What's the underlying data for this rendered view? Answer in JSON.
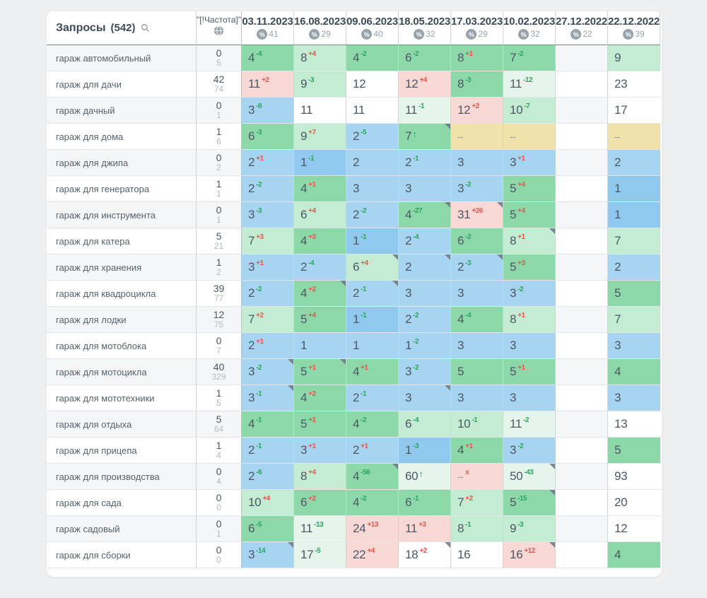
{
  "header": {
    "queries_label": "Запросы",
    "queries_count": "(542)",
    "frequency_label": "\"[!Частота]\"",
    "icons": {
      "search": "magnifier",
      "frequency": "globe",
      "percent": "percent-circle"
    },
    "columns": [
      {
        "date": "03.11.2023",
        "percent": "41"
      },
      {
        "date": "16.08.2023",
        "percent": "29"
      },
      {
        "date": "09.06.2023",
        "percent": "40"
      },
      {
        "date": "18.05.2023",
        "percent": "32"
      },
      {
        "date": "17.03.2023",
        "percent": "29"
      },
      {
        "date": "10.02.2023",
        "percent": "32"
      },
      {
        "date": "27.12.2022",
        "percent": "22"
      },
      {
        "date": "22.12.2022",
        "percent": "39"
      }
    ]
  },
  "colors": {
    "delta_good": "#2ba55e",
    "delta_bad": "#e4574e",
    "cell_bg": {
      "g": "#8dd8a8",
      "lg": "#c3ecd3",
      "pg": "#e6f6ec",
      "b": "#a7d4f0",
      "db": "#90c8ee",
      "p": "#f8d9d6",
      "y": "#f1e1ab",
      "w": "#ffffff",
      "e": ""
    }
  },
  "rows": [
    {
      "keyword": "гараж автомобильный",
      "freq_top": "0",
      "freq_bottom": "5",
      "cells": [
        {
          "v": "4",
          "d": "-4",
          "bg": "g"
        },
        {
          "v": "8",
          "d": "+4",
          "bg": "lg"
        },
        {
          "v": "4",
          "d": "-2",
          "bg": "g"
        },
        {
          "v": "6",
          "d": "-2",
          "bg": "g"
        },
        {
          "v": "8",
          "d": "+1",
          "bg": "g"
        },
        {
          "v": "7",
          "d": "-2",
          "bg": "g"
        },
        {
          "v": "",
          "d": "",
          "bg": "e"
        },
        {
          "v": "9",
          "d": "",
          "bg": "lg"
        }
      ]
    },
    {
      "keyword": "гараж для дачи",
      "freq_top": "42",
      "freq_bottom": "74",
      "cells": [
        {
          "v": "11",
          "d": "+2",
          "bg": "p"
        },
        {
          "v": "9",
          "d": "-3",
          "bg": "lg"
        },
        {
          "v": "12",
          "d": "",
          "bg": "w"
        },
        {
          "v": "12",
          "d": "+4",
          "bg": "p"
        },
        {
          "v": "8",
          "d": "-3",
          "bg": "g"
        },
        {
          "v": "11",
          "d": "-12",
          "bg": "pg"
        },
        {
          "v": "",
          "d": "",
          "bg": "e"
        },
        {
          "v": "23",
          "d": "",
          "bg": "w"
        }
      ]
    },
    {
      "keyword": "гараж дачный",
      "freq_top": "0",
      "freq_bottom": "1",
      "cells": [
        {
          "v": "3",
          "d": "-8",
          "bg": "b"
        },
        {
          "v": "11",
          "d": "",
          "bg": "w"
        },
        {
          "v": "11",
          "d": "",
          "bg": "w"
        },
        {
          "v": "11",
          "d": "-1",
          "bg": "pg"
        },
        {
          "v": "12",
          "d": "+2",
          "bg": "p"
        },
        {
          "v": "10",
          "d": "-7",
          "bg": "lg"
        },
        {
          "v": "",
          "d": "",
          "bg": "e"
        },
        {
          "v": "17",
          "d": "",
          "bg": "w"
        }
      ]
    },
    {
      "keyword": "гараж для дома",
      "freq_top": "1",
      "freq_bottom": "6",
      "cells": [
        {
          "v": "6",
          "d": "-3",
          "bg": "g"
        },
        {
          "v": "9",
          "d": "+7",
          "bg": "lg"
        },
        {
          "v": "2",
          "d": "-5",
          "bg": "b"
        },
        {
          "v": "7",
          "d": "up",
          "bg": "g",
          "note": true
        },
        {
          "v": "--",
          "d": "",
          "bg": "y"
        },
        {
          "v": "--",
          "d": "",
          "bg": "y"
        },
        {
          "v": "",
          "d": "",
          "bg": "e"
        },
        {
          "v": "--",
          "d": "",
          "bg": "y"
        }
      ]
    },
    {
      "keyword": "гараж для джипа",
      "freq_top": "0",
      "freq_bottom": "2",
      "cells": [
        {
          "v": "2",
          "d": "+1",
          "bg": "b"
        },
        {
          "v": "1",
          "d": "-1",
          "bg": "db"
        },
        {
          "v": "2",
          "d": "",
          "bg": "b"
        },
        {
          "v": "2",
          "d": "-1",
          "bg": "b"
        },
        {
          "v": "3",
          "d": "",
          "bg": "b"
        },
        {
          "v": "3",
          "d": "+1",
          "bg": "b"
        },
        {
          "v": "",
          "d": "",
          "bg": "e"
        },
        {
          "v": "2",
          "d": "",
          "bg": "b"
        }
      ]
    },
    {
      "keyword": "гараж для генератора",
      "freq_top": "1",
      "freq_bottom": "1",
      "cells": [
        {
          "v": "2",
          "d": "-2",
          "bg": "b"
        },
        {
          "v": "4",
          "d": "+1",
          "bg": "g"
        },
        {
          "v": "3",
          "d": "",
          "bg": "b"
        },
        {
          "v": "3",
          "d": "",
          "bg": "b"
        },
        {
          "v": "3",
          "d": "-2",
          "bg": "b"
        },
        {
          "v": "5",
          "d": "+4",
          "bg": "g"
        },
        {
          "v": "",
          "d": "",
          "bg": "e"
        },
        {
          "v": "1",
          "d": "",
          "bg": "db"
        }
      ]
    },
    {
      "keyword": "гараж для инструмента",
      "freq_top": "0",
      "freq_bottom": "1",
      "cells": [
        {
          "v": "3",
          "d": "-3",
          "bg": "b"
        },
        {
          "v": "6",
          "d": "+4",
          "bg": "lg"
        },
        {
          "v": "2",
          "d": "-2",
          "bg": "b"
        },
        {
          "v": "4",
          "d": "-27",
          "bg": "g",
          "note": true
        },
        {
          "v": "31",
          "d": "+26",
          "bg": "p",
          "note": true
        },
        {
          "v": "5",
          "d": "+4",
          "bg": "g"
        },
        {
          "v": "",
          "d": "",
          "bg": "e"
        },
        {
          "v": "1",
          "d": "",
          "bg": "db"
        }
      ]
    },
    {
      "keyword": "гараж для катера",
      "freq_top": "5",
      "freq_bottom": "21",
      "cells": [
        {
          "v": "7",
          "d": "+3",
          "bg": "lg"
        },
        {
          "v": "4",
          "d": "+3",
          "bg": "g"
        },
        {
          "v": "1",
          "d": "-1",
          "bg": "db"
        },
        {
          "v": "2",
          "d": "-4",
          "bg": "b"
        },
        {
          "v": "6",
          "d": "-2",
          "bg": "g"
        },
        {
          "v": "8",
          "d": "+1",
          "bg": "lg",
          "note": true
        },
        {
          "v": "",
          "d": "",
          "bg": "e"
        },
        {
          "v": "7",
          "d": "",
          "bg": "lg"
        }
      ]
    },
    {
      "keyword": "гараж для хранения",
      "freq_top": "1",
      "freq_bottom": "2",
      "cells": [
        {
          "v": "3",
          "d": "+1",
          "bg": "b"
        },
        {
          "v": "2",
          "d": "-4",
          "bg": "b"
        },
        {
          "v": "6",
          "d": "+4",
          "bg": "lg",
          "note": true
        },
        {
          "v": "2",
          "d": "",
          "bg": "b",
          "note": true
        },
        {
          "v": "2",
          "d": "-3",
          "bg": "b",
          "note": true
        },
        {
          "v": "5",
          "d": "+3",
          "bg": "g"
        },
        {
          "v": "",
          "d": "",
          "bg": "e"
        },
        {
          "v": "2",
          "d": "",
          "bg": "b"
        }
      ]
    },
    {
      "keyword": "гараж для квадроцикла",
      "freq_top": "39",
      "freq_bottom": "77",
      "cells": [
        {
          "v": "2",
          "d": "-2",
          "bg": "b"
        },
        {
          "v": "4",
          "d": "+2",
          "bg": "g",
          "note": true
        },
        {
          "v": "2",
          "d": "-1",
          "bg": "b",
          "note": true
        },
        {
          "v": "3",
          "d": "",
          "bg": "b"
        },
        {
          "v": "3",
          "d": "",
          "bg": "b"
        },
        {
          "v": "3",
          "d": "-2",
          "bg": "b"
        },
        {
          "v": "",
          "d": "",
          "bg": "e"
        },
        {
          "v": "5",
          "d": "",
          "bg": "g"
        }
      ]
    },
    {
      "keyword": "гараж для лодки",
      "freq_top": "12",
      "freq_bottom": "75",
      "cells": [
        {
          "v": "7",
          "d": "+2",
          "bg": "lg"
        },
        {
          "v": "5",
          "d": "+4",
          "bg": "g"
        },
        {
          "v": "1",
          "d": "-1",
          "bg": "db"
        },
        {
          "v": "2",
          "d": "-2",
          "bg": "b"
        },
        {
          "v": "4",
          "d": "-4",
          "bg": "g"
        },
        {
          "v": "8",
          "d": "+1",
          "bg": "lg"
        },
        {
          "v": "",
          "d": "",
          "bg": "e"
        },
        {
          "v": "7",
          "d": "",
          "bg": "lg"
        }
      ]
    },
    {
      "keyword": "гараж для мотоблока",
      "freq_top": "0",
      "freq_bottom": "7",
      "cells": [
        {
          "v": "2",
          "d": "+1",
          "bg": "b"
        },
        {
          "v": "1",
          "d": "",
          "bg": "b"
        },
        {
          "v": "1",
          "d": "",
          "bg": "b"
        },
        {
          "v": "1",
          "d": "-2",
          "bg": "b"
        },
        {
          "v": "3",
          "d": "",
          "bg": "b"
        },
        {
          "v": "3",
          "d": "",
          "bg": "b"
        },
        {
          "v": "",
          "d": "",
          "bg": "e"
        },
        {
          "v": "3",
          "d": "",
          "bg": "b"
        }
      ]
    },
    {
      "keyword": "гараж для мотоцикла",
      "freq_top": "40",
      "freq_bottom": "329",
      "cells": [
        {
          "v": "3",
          "d": "-2",
          "bg": "b",
          "note": true
        },
        {
          "v": "5",
          "d": "+1",
          "bg": "g",
          "note": true
        },
        {
          "v": "4",
          "d": "+1",
          "bg": "g"
        },
        {
          "v": "3",
          "d": "-2",
          "bg": "b"
        },
        {
          "v": "5",
          "d": "",
          "bg": "g"
        },
        {
          "v": "5",
          "d": "+1",
          "bg": "g"
        },
        {
          "v": "",
          "d": "",
          "bg": "e"
        },
        {
          "v": "4",
          "d": "",
          "bg": "g"
        }
      ]
    },
    {
      "keyword": "гараж для мототехники",
      "freq_top": "1",
      "freq_bottom": "5",
      "cells": [
        {
          "v": "3",
          "d": "-1",
          "bg": "b",
          "note": true
        },
        {
          "v": "4",
          "d": "+2",
          "bg": "g"
        },
        {
          "v": "2",
          "d": "-1",
          "bg": "b"
        },
        {
          "v": "3",
          "d": "",
          "bg": "b",
          "note": true
        },
        {
          "v": "3",
          "d": "",
          "bg": "b"
        },
        {
          "v": "3",
          "d": "",
          "bg": "b"
        },
        {
          "v": "",
          "d": "",
          "bg": "e"
        },
        {
          "v": "3",
          "d": "",
          "bg": "b"
        }
      ]
    },
    {
      "keyword": "гараж для отдыха",
      "freq_top": "5",
      "freq_bottom": "64",
      "cells": [
        {
          "v": "4",
          "d": "-1",
          "bg": "g"
        },
        {
          "v": "5",
          "d": "+1",
          "bg": "g"
        },
        {
          "v": "4",
          "d": "-2",
          "bg": "g"
        },
        {
          "v": "6",
          "d": "-4",
          "bg": "lg"
        },
        {
          "v": "10",
          "d": "-1",
          "bg": "lg"
        },
        {
          "v": "11",
          "d": "-2",
          "bg": "pg"
        },
        {
          "v": "",
          "d": "",
          "bg": "e"
        },
        {
          "v": "13",
          "d": "",
          "bg": "w"
        }
      ]
    },
    {
      "keyword": "гараж для прицепа",
      "freq_top": "1",
      "freq_bottom": "4",
      "cells": [
        {
          "v": "2",
          "d": "-1",
          "bg": "b"
        },
        {
          "v": "3",
          "d": "+1",
          "bg": "b"
        },
        {
          "v": "2",
          "d": "+1",
          "bg": "b"
        },
        {
          "v": "1",
          "d": "-3",
          "bg": "db"
        },
        {
          "v": "4",
          "d": "+1",
          "bg": "g"
        },
        {
          "v": "3",
          "d": "-2",
          "bg": "b"
        },
        {
          "v": "",
          "d": "",
          "bg": "e"
        },
        {
          "v": "5",
          "d": "",
          "bg": "g"
        }
      ]
    },
    {
      "keyword": "гараж для производства",
      "freq_top": "0",
      "freq_bottom": "4",
      "cells": [
        {
          "v": "2",
          "d": "-6",
          "bg": "b"
        },
        {
          "v": "8",
          "d": "+4",
          "bg": "lg"
        },
        {
          "v": "4",
          "d": "-56",
          "bg": "g",
          "note": true
        },
        {
          "v": "60",
          "d": "up",
          "bg": "pg"
        },
        {
          "v": "--",
          "d": "x",
          "bg": "p"
        },
        {
          "v": "50",
          "d": "-43",
          "bg": "pg",
          "note": true
        },
        {
          "v": "",
          "d": "",
          "bg": "e"
        },
        {
          "v": "93",
          "d": "",
          "bg": "w"
        }
      ]
    },
    {
      "keyword": "гараж для сада",
      "freq_top": "0",
      "freq_bottom": "0",
      "cells": [
        {
          "v": "10",
          "d": "+4",
          "bg": "lg"
        },
        {
          "v": "6",
          "d": "+2",
          "bg": "g"
        },
        {
          "v": "4",
          "d": "-2",
          "bg": "g"
        },
        {
          "v": "6",
          "d": "-1",
          "bg": "g"
        },
        {
          "v": "7",
          "d": "+2",
          "bg": "lg"
        },
        {
          "v": "5",
          "d": "-15",
          "bg": "g",
          "note": true
        },
        {
          "v": "",
          "d": "",
          "bg": "e"
        },
        {
          "v": "20",
          "d": "",
          "bg": "w"
        }
      ]
    },
    {
      "keyword": "гараж садовый",
      "freq_top": "0",
      "freq_bottom": "1",
      "cells": [
        {
          "v": "6",
          "d": "-5",
          "bg": "g"
        },
        {
          "v": "11",
          "d": "-13",
          "bg": "pg"
        },
        {
          "v": "24",
          "d": "+13",
          "bg": "p"
        },
        {
          "v": "11",
          "d": "+3",
          "bg": "p"
        },
        {
          "v": "8",
          "d": "-1",
          "bg": "lg"
        },
        {
          "v": "9",
          "d": "-3",
          "bg": "lg"
        },
        {
          "v": "",
          "d": "",
          "bg": "e"
        },
        {
          "v": "12",
          "d": "",
          "bg": "w"
        }
      ]
    },
    {
      "keyword": "гараж для сборки",
      "freq_top": "0",
      "freq_bottom": "0",
      "cells": [
        {
          "v": "3",
          "d": "-14",
          "bg": "b",
          "note": true
        },
        {
          "v": "17",
          "d": "-5",
          "bg": "pg"
        },
        {
          "v": "22",
          "d": "+4",
          "bg": "p"
        },
        {
          "v": "18",
          "d": "+2",
          "bg": "w",
          "note": true
        },
        {
          "v": "16",
          "d": "",
          "bg": "w"
        },
        {
          "v": "16",
          "d": "+12",
          "bg": "p",
          "note": true
        },
        {
          "v": "",
          "d": "",
          "bg": "e"
        },
        {
          "v": "4",
          "d": "",
          "bg": "g"
        }
      ]
    }
  ]
}
